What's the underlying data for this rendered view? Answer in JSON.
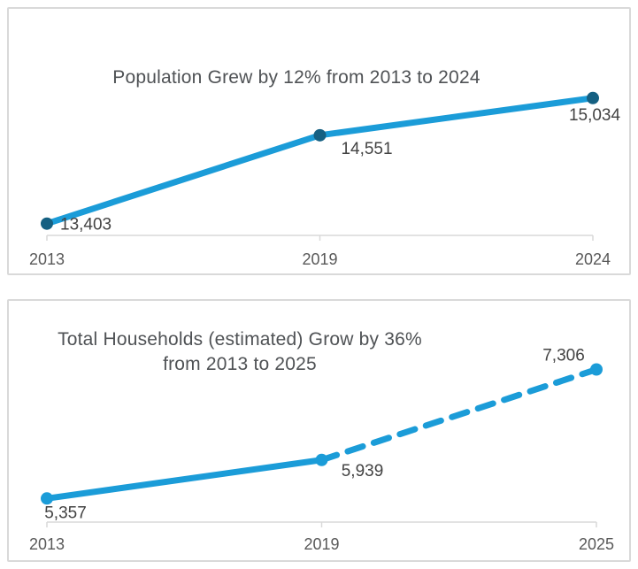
{
  "page": {
    "background": "#ffffff"
  },
  "colors": {
    "line": "#1b9cd8",
    "marker_dark": "#156082",
    "marker_light": "#1b9cd8",
    "label": "#434343",
    "axis": "#d9d9d9",
    "axis_label": "#595959",
    "title": "#4f5255",
    "card_border": "#d9d9d9"
  },
  "chart_data": [
    {
      "type": "line",
      "title": "Population Grew by 12% from 2013 to 2024",
      "title_lines": [
        "Population Grew by 12% from 2013 to 2024"
      ],
      "categories": [
        "2013",
        "2019",
        "2024"
      ],
      "series": [
        {
          "name": "Population",
          "values": [
            13403,
            14551,
            15034
          ],
          "labels": [
            "13,403",
            "14,551",
            "15,034"
          ],
          "line_style": "solid",
          "marker_color": "#156082"
        }
      ],
      "ylim": [
        13250,
        15250
      ],
      "xlabel": "",
      "ylabel": "",
      "grid": false,
      "legend": "none"
    },
    {
      "type": "line",
      "title": "Total Households (estimated) Grow by 36% from 2013 to 2025",
      "title_lines": [
        "Total Households (estimated) Grow by 36%",
        "from 2013 to 2025"
      ],
      "categories": [
        "2013",
        "2019",
        "2025"
      ],
      "series": [
        {
          "name": "Total Households",
          "values": [
            5357,
            5939,
            7306
          ],
          "labels": [
            "5,357",
            "5,939",
            "7,306"
          ],
          "line_style": "solid-then-dashed",
          "dashed_from_index": 1,
          "marker_color": "#1b9cd8"
        }
      ],
      "ylim": [
        5000,
        7500
      ],
      "xlabel": "",
      "ylabel": "",
      "grid": false,
      "legend": "none"
    }
  ]
}
